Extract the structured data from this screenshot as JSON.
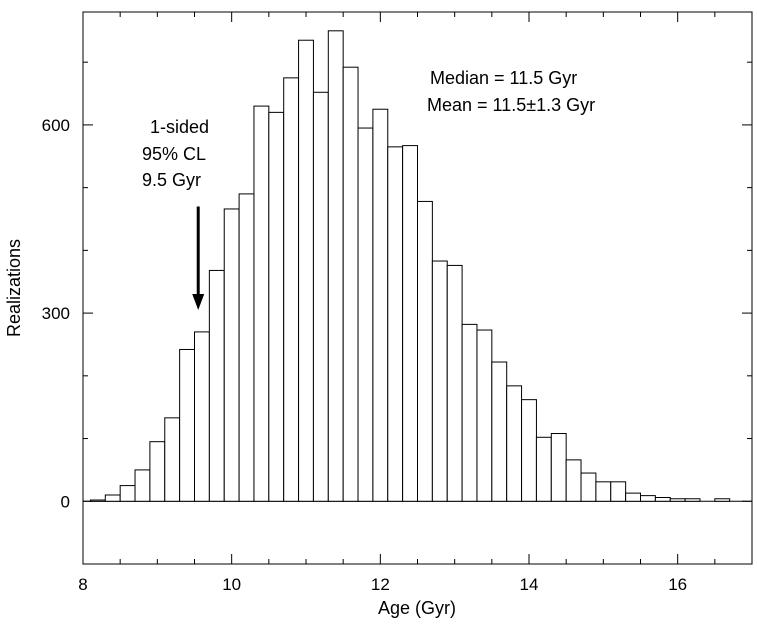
{
  "chart_data": {
    "type": "bar",
    "xlabel": "Age (Gyr)",
    "ylabel": "Realizations",
    "xlim": [
      8,
      17
    ],
    "ylim": [
      -100,
      780
    ],
    "x_ticks": [
      8,
      10,
      12,
      14,
      16
    ],
    "y_ticks": [
      0,
      300,
      600
    ],
    "x_tick_labels": [
      "8",
      "10",
      "12",
      "14",
      "16"
    ],
    "y_tick_labels": [
      "0",
      "300",
      "600"
    ],
    "bin_width": 0.2,
    "bin_starts": [
      8.1,
      8.3,
      8.5,
      8.7,
      8.9,
      9.1,
      9.3,
      9.5,
      9.7,
      9.9,
      10.1,
      10.3,
      10.5,
      10.7,
      10.9,
      11.1,
      11.3,
      11.5,
      11.7,
      11.9,
      12.1,
      12.3,
      12.5,
      12.7,
      12.9,
      13.1,
      13.3,
      13.5,
      13.7,
      13.9,
      14.1,
      14.3,
      14.5,
      14.7,
      14.9,
      15.1,
      15.3,
      15.5,
      15.7,
      15.9,
      16.1,
      16.3,
      16.5,
      16.7,
      16.9
    ],
    "values": [
      2,
      10,
      25,
      50,
      95,
      133,
      242,
      270,
      368,
      466,
      490,
      630,
      620,
      675,
      735,
      652,
      750,
      692,
      595,
      625,
      565,
      567,
      478,
      383,
      376,
      282,
      273,
      222,
      184,
      162,
      102,
      108,
      66,
      45,
      31,
      31,
      13,
      9,
      6,
      4,
      4,
      0,
      4,
      0,
      0
    ],
    "annotations": {
      "median": "Median = 11.5 Gyr",
      "mean": "Mean = 11.5±1.3 Gyr",
      "cl_line1": "1-sided",
      "cl_line2": "95% CL",
      "cl_line3": "9.5 Gyr"
    },
    "arrow": {
      "x": 9.55,
      "y_top": 470,
      "y_tip": 305
    }
  }
}
